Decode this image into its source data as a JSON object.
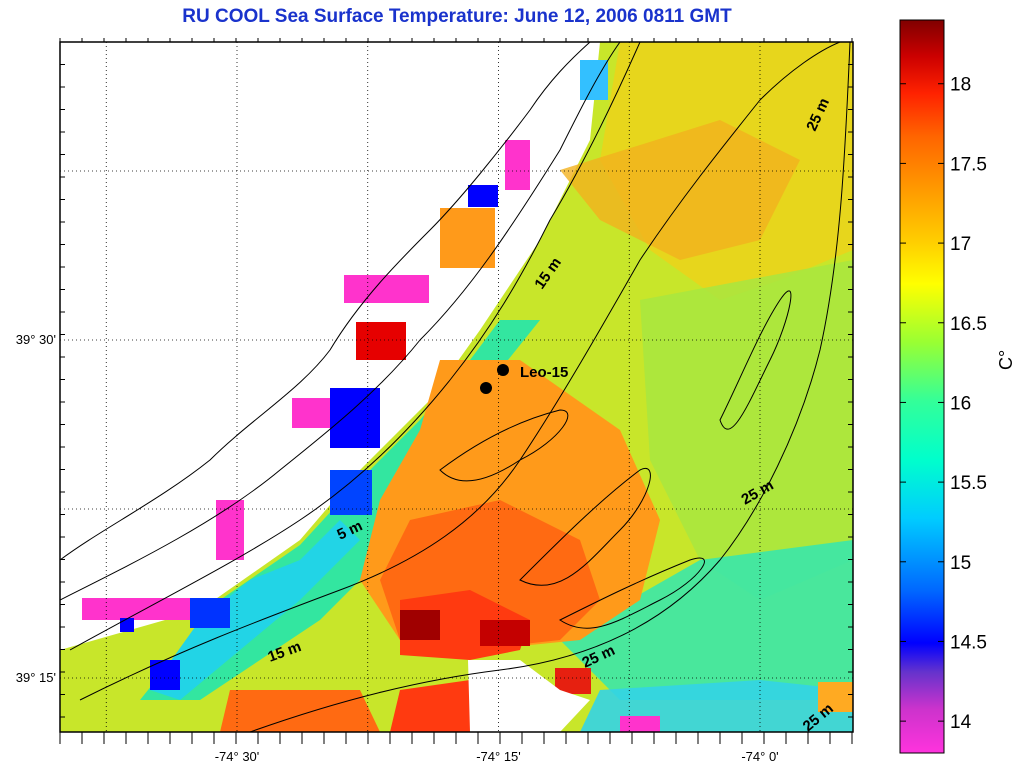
{
  "title": "RU COOL  Sea Surface Temperature:  June 12, 2006 0811 GMT",
  "axes": {
    "lon_ticks": [
      {
        "label": "-74° 30'",
        "value": -74.5
      },
      {
        "label": "-74° 15'",
        "value": -74.25
      },
      {
        "label": "-74° 0'",
        "value": -74.0
      }
    ],
    "lat_ticks": [
      {
        "label": "39° 30'",
        "value": 39.5
      },
      {
        "label": "39° 15'",
        "value": 39.25
      }
    ],
    "grid": true
  },
  "colorbar": {
    "label": "C°",
    "ticks": [
      "14",
      "14.5",
      "15",
      "15.5",
      "16",
      "16.5",
      "17",
      "17.5",
      "18"
    ],
    "range": [
      13.8,
      18.4
    ],
    "colors": [
      "#ff33dd",
      "#cc33cc",
      "#6633cc",
      "#0000ff",
      "#0066ff",
      "#00ccff",
      "#00ffcc",
      "#33ff99",
      "#99ff33",
      "#ffff00",
      "#ffcc00",
      "#ff9900",
      "#ff6600",
      "#ff2200",
      "#cc0000",
      "#800000"
    ]
  },
  "stations": [
    {
      "name": "Leo-15",
      "label": "Leo-15"
    },
    {
      "name": "station-2",
      "label": ""
    }
  ],
  "contours": [
    {
      "label": "5 m"
    },
    {
      "label": "15 m"
    },
    {
      "label": "15 m"
    },
    {
      "label": "25 m"
    },
    {
      "label": "25 m"
    },
    {
      "label": "25 m"
    },
    {
      "label": "25 m"
    }
  ]
}
